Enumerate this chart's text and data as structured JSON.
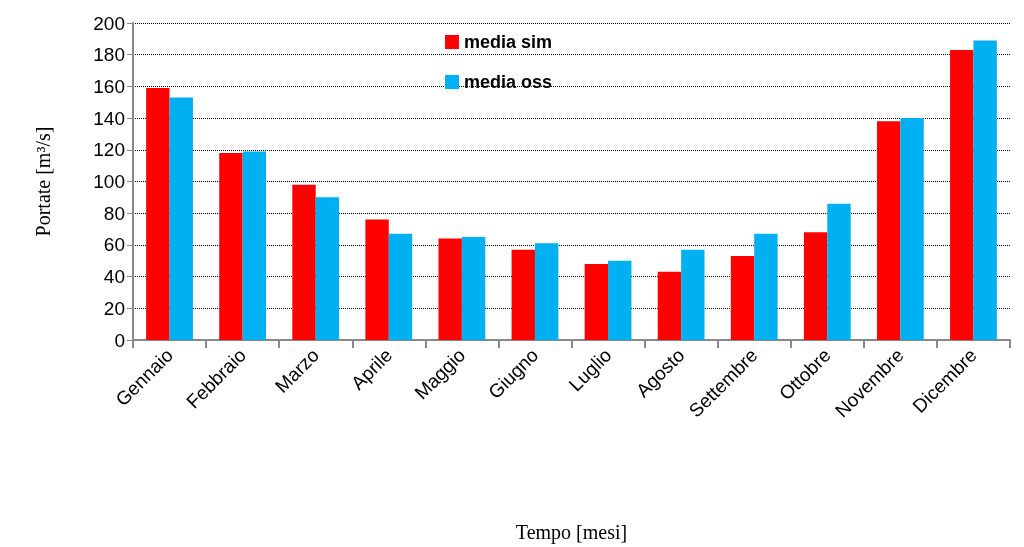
{
  "chart_data": {
    "type": "bar",
    "xlabel": "Tempo [mesi]",
    "ylabel": "Portate [m³/s]",
    "categories": [
      "Gennaio",
      "Febbraio",
      "Marzo",
      "Aprile",
      "Maggio",
      "Giugno",
      "Luglio",
      "Agosto",
      "Settembre",
      "Ottobre",
      "Novembre",
      "Dicembre"
    ],
    "series": [
      {
        "name": "media sim",
        "color": "#ff0000",
        "values": [
          159,
          118,
          98,
          76,
          64,
          57,
          48,
          43,
          53,
          68,
          138,
          183
        ]
      },
      {
        "name": "media oss",
        "color": "#00b0f0",
        "values": [
          153,
          119,
          90,
          67,
          65,
          61,
          50,
          57,
          67,
          86,
          140,
          189
        ]
      }
    ],
    "ylim": [
      0,
      200
    ],
    "yticks": [
      0,
      20,
      40,
      60,
      80,
      100,
      120,
      140,
      160,
      180,
      200
    ],
    "grid": "y",
    "legend": "top"
  }
}
